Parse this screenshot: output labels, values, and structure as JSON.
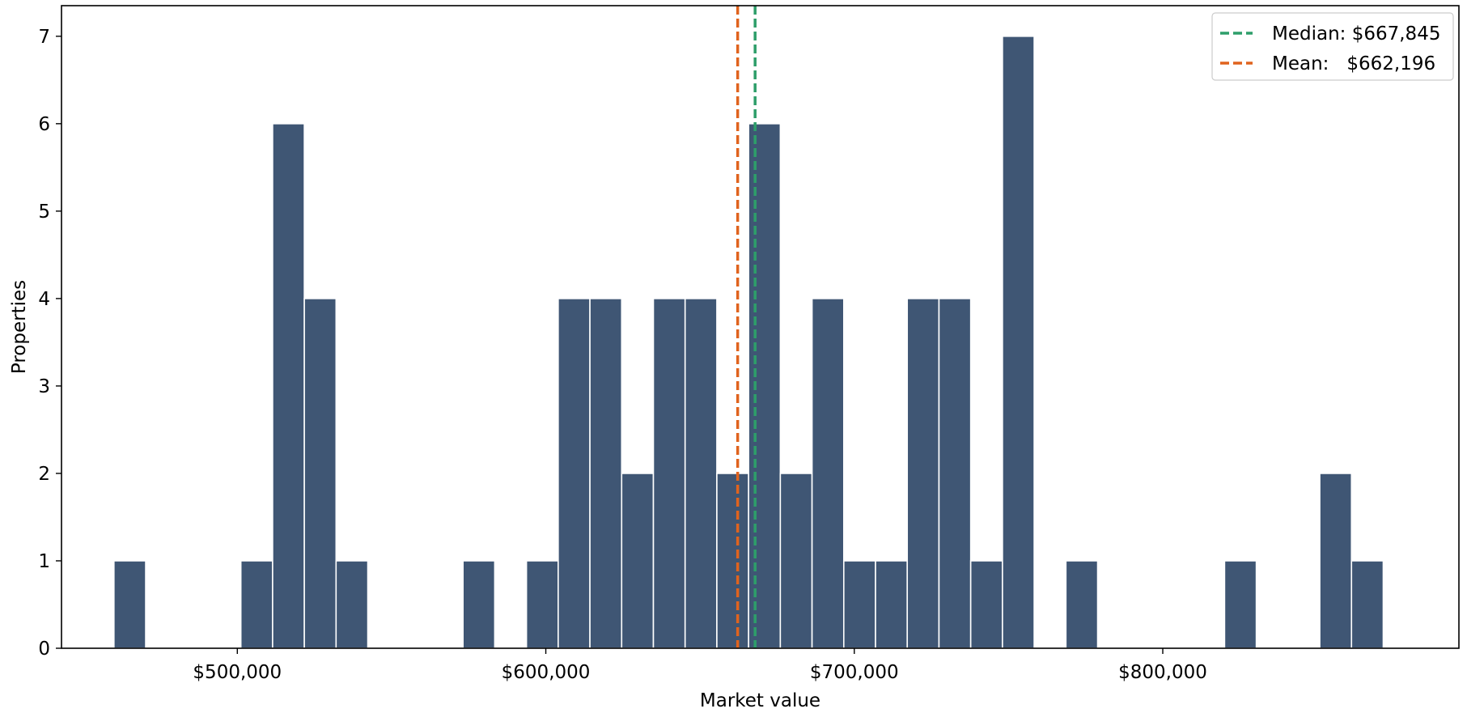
{
  "chart_data": {
    "type": "bar",
    "subtype": "histogram",
    "xlabel": "Market value",
    "ylabel": "Properties",
    "bin_width": 10286.74,
    "bins": [
      {
        "x0": 460000,
        "count": 1
      },
      {
        "x0": 470286.74,
        "count": 0
      },
      {
        "x0": 480573.48,
        "count": 0
      },
      {
        "x0": 490860.22,
        "count": 0
      },
      {
        "x0": 501146.96,
        "count": 1
      },
      {
        "x0": 511433.7,
        "count": 6
      },
      {
        "x0": 521720.44,
        "count": 4
      },
      {
        "x0": 532007.18,
        "count": 1
      },
      {
        "x0": 542293.92,
        "count": 0
      },
      {
        "x0": 552580.66,
        "count": 0
      },
      {
        "x0": 562867.4,
        "count": 0
      },
      {
        "x0": 573154.14,
        "count": 1
      },
      {
        "x0": 583440.88,
        "count": 0
      },
      {
        "x0": 593727.62,
        "count": 1
      },
      {
        "x0": 604014.36,
        "count": 4
      },
      {
        "x0": 614301.1,
        "count": 4
      },
      {
        "x0": 624587.84,
        "count": 2
      },
      {
        "x0": 634874.58,
        "count": 4
      },
      {
        "x0": 645161.32,
        "count": 4
      },
      {
        "x0": 655448.06,
        "count": 2
      },
      {
        "x0": 665734.8,
        "count": 6
      },
      {
        "x0": 676021.54,
        "count": 2
      },
      {
        "x0": 686308.28,
        "count": 4
      },
      {
        "x0": 696595.02,
        "count": 1
      },
      {
        "x0": 706881.76,
        "count": 1
      },
      {
        "x0": 717168.5,
        "count": 4
      },
      {
        "x0": 727455.24,
        "count": 4
      },
      {
        "x0": 737741.98,
        "count": 1
      },
      {
        "x0": 748028.72,
        "count": 7
      },
      {
        "x0": 758315.46,
        "count": 0
      },
      {
        "x0": 768602.2,
        "count": 1
      },
      {
        "x0": 778888.94,
        "count": 0
      },
      {
        "x0": 789175.68,
        "count": 0
      },
      {
        "x0": 799462.42,
        "count": 0
      },
      {
        "x0": 809749.16,
        "count": 0
      },
      {
        "x0": 820035.9,
        "count": 1
      },
      {
        "x0": 830322.64,
        "count": 0
      },
      {
        "x0": 840609.38,
        "count": 0
      },
      {
        "x0": 850896.12,
        "count": 2
      },
      {
        "x0": 861182.86,
        "count": 1
      }
    ],
    "xlim": [
      443000,
      896000
    ],
    "ylim": [
      0,
      7.35
    ],
    "xticks": [
      500000,
      600000,
      700000,
      800000
    ],
    "xtick_labels": [
      "$500,000",
      "$600,000",
      "$700,000",
      "$800,000"
    ],
    "yticks": [
      0,
      1,
      2,
      3,
      4,
      5,
      6,
      7
    ],
    "ytick_labels": [
      "0",
      "1",
      "2",
      "3",
      "4",
      "5",
      "6",
      "7"
    ],
    "reference_lines": [
      {
        "label": "Median: $667,845",
        "value": 667845,
        "color": "#2e9e6a",
        "style": "dashed"
      },
      {
        "label": "Mean:   $662,196",
        "value": 662196,
        "color": "#e0631e",
        "style": "dashed"
      }
    ],
    "bar_color": "#3f5674",
    "bar_edge_color": "#ffffff",
    "legend_position": "top-right",
    "grid": false
  }
}
